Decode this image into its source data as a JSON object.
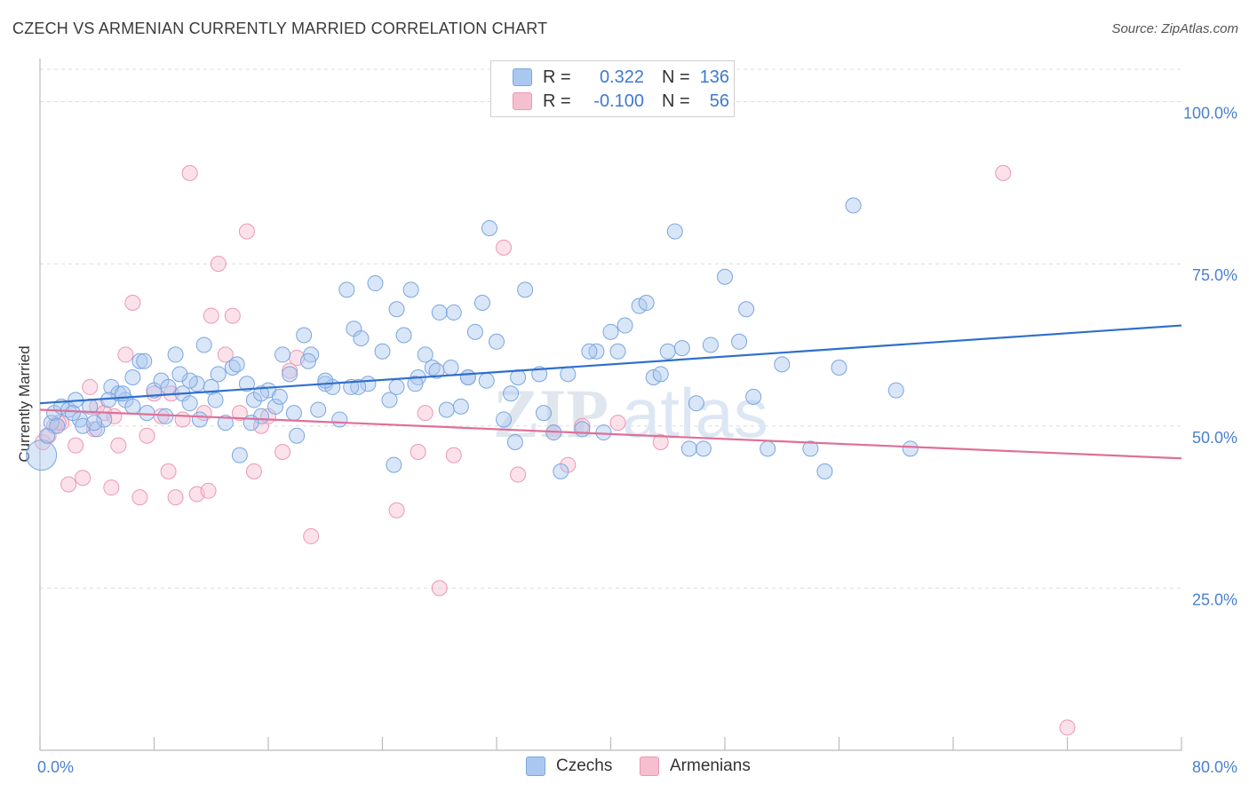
{
  "header": {
    "title": "CZECH VS ARMENIAN CURRENTLY MARRIED CORRELATION CHART",
    "source": "Source: ZipAtlas.com"
  },
  "legend": {
    "czechs": {
      "r_label": "R =",
      "r_value": "0.322",
      "n_label": "N =",
      "n_value": "136"
    },
    "armenians": {
      "r_label": "R =",
      "r_value": "-0.100",
      "n_label": "N =",
      "n_value": "56"
    }
  },
  "watermark": {
    "zip": "ZIP",
    "atlas": "atlas"
  },
  "colors": {
    "czech_fill": "#aac8ef",
    "czech_stroke": "#7aa6e0",
    "czech_line": "#2f6fcc",
    "armenian_fill": "#f6bfd0",
    "armenian_stroke": "#ec98b3",
    "armenian_line": "#e06f98",
    "axis_label": "#4a7fd0"
  },
  "chart_data": {
    "type": "scatter",
    "title": "CZECH VS ARMENIAN CURRENTLY MARRIED CORRELATION CHART",
    "xlabel": "",
    "ylabel": "Currently Married",
    "xlim": [
      0,
      80
    ],
    "ylim": [
      0,
      105
    ],
    "x_tick_labels": [
      "0.0%",
      "80.0%"
    ],
    "y_ticks": [
      25,
      50,
      75,
      100
    ],
    "y_tick_labels": [
      "25.0%",
      "50.0%",
      "75.0%",
      "100.0%"
    ],
    "grid": true,
    "legend_position": "top-center",
    "series": [
      {
        "name": "Czechs",
        "points": [
          [
            0.1,
            45.5
          ],
          [
            0.5,
            48.5
          ],
          [
            0.8,
            50.5
          ],
          [
            1.0,
            52
          ],
          [
            1.5,
            53
          ],
          [
            2.0,
            52.5
          ],
          [
            2.5,
            54
          ],
          [
            2.8,
            51
          ],
          [
            3.0,
            50
          ],
          [
            3.5,
            53
          ],
          [
            4.0,
            49.5
          ],
          [
            4.5,
            51
          ],
          [
            5.0,
            56
          ],
          [
            5.5,
            55
          ],
          [
            6.0,
            54
          ],
          [
            6.5,
            57.5
          ],
          [
            7.0,
            60
          ],
          [
            7.5,
            52
          ],
          [
            8.0,
            55.5
          ],
          [
            8.5,
            57
          ],
          [
            9.0,
            56
          ],
          [
            9.5,
            61
          ],
          [
            10.0,
            55
          ],
          [
            10.5,
            53.5
          ],
          [
            11.0,
            56.5
          ],
          [
            11.5,
            62.5
          ],
          [
            12.0,
            56
          ],
          [
            12.5,
            58
          ],
          [
            13.0,
            50.5
          ],
          [
            13.5,
            59
          ],
          [
            14.0,
            45.5
          ],
          [
            14.5,
            56.5
          ],
          [
            15.0,
            54
          ],
          [
            15.5,
            51.5
          ],
          [
            16.0,
            55.5
          ],
          [
            16.5,
            53
          ],
          [
            17.0,
            61
          ],
          [
            17.5,
            58
          ],
          [
            18.0,
            48.5
          ],
          [
            18.5,
            64
          ],
          [
            19.0,
            61
          ],
          [
            19.5,
            52.5
          ],
          [
            20.0,
            56.5
          ],
          [
            20.5,
            56
          ],
          [
            21.0,
            51
          ],
          [
            21.5,
            71
          ],
          [
            22.0,
            65
          ],
          [
            22.5,
            63.5
          ],
          [
            23.0,
            56.5
          ],
          [
            23.5,
            72
          ],
          [
            24.0,
            61.5
          ],
          [
            24.5,
            54
          ],
          [
            25.0,
            68
          ],
          [
            25.5,
            64
          ],
          [
            26.0,
            71
          ],
          [
            26.5,
            57.5
          ],
          [
            27.0,
            61
          ],
          [
            27.5,
            59
          ],
          [
            28.0,
            67.5
          ],
          [
            28.5,
            52.5
          ],
          [
            29.0,
            67.5
          ],
          [
            29.5,
            53
          ],
          [
            30.0,
            57.5
          ],
          [
            30.5,
            64.5
          ],
          [
            31.0,
            69
          ],
          [
            31.5,
            80.5
          ],
          [
            32.0,
            63
          ],
          [
            32.5,
            51
          ],
          [
            33.0,
            55
          ],
          [
            33.5,
            57.5
          ],
          [
            34.0,
            71
          ],
          [
            35.0,
            58
          ],
          [
            36.0,
            49
          ],
          [
            37.0,
            58
          ],
          [
            38.0,
            49.5
          ],
          [
            39.0,
            61.5
          ],
          [
            40.0,
            64.5
          ],
          [
            40.5,
            61.5
          ],
          [
            41.0,
            65.5
          ],
          [
            42.0,
            68.5
          ],
          [
            42.5,
            69
          ],
          [
            43.0,
            57.5
          ],
          [
            44.0,
            61.5
          ],
          [
            44.5,
            80
          ],
          [
            45.0,
            62
          ],
          [
            46.0,
            53.5
          ],
          [
            47.0,
            62.5
          ],
          [
            48.0,
            73
          ],
          [
            49.0,
            63
          ],
          [
            49.5,
            68
          ],
          [
            50.0,
            54.5
          ],
          [
            51.0,
            46.5
          ],
          [
            52.0,
            59.5
          ],
          [
            54.0,
            46.5
          ],
          [
            55.0,
            43
          ],
          [
            56.0,
            59
          ],
          [
            57.0,
            84
          ],
          [
            60.0,
            55.5
          ],
          [
            61.0,
            46.5
          ],
          [
            36.5,
            43
          ],
          [
            39.5,
            49
          ],
          [
            30.0,
            57.5
          ],
          [
            25.0,
            56
          ],
          [
            20.0,
            57
          ],
          [
            15.5,
            55
          ],
          [
            10.5,
            57
          ],
          [
            6.5,
            53
          ],
          [
            2.3,
            52
          ],
          [
            3.8,
            50.5
          ],
          [
            8.8,
            51.5
          ],
          [
            12.3,
            54
          ],
          [
            17.8,
            52
          ],
          [
            22.3,
            56
          ],
          [
            27.8,
            58.5
          ],
          [
            33.3,
            47.5
          ],
          [
            45.5,
            46.5
          ],
          [
            46.5,
            46.5
          ],
          [
            13.8,
            59.5
          ],
          [
            18.8,
            60
          ],
          [
            24.8,
            44
          ],
          [
            7.3,
            60
          ],
          [
            4.8,
            54
          ],
          [
            9.8,
            58
          ],
          [
            1.2,
            50
          ],
          [
            5.8,
            55
          ],
          [
            16.8,
            54.5
          ],
          [
            21.8,
            56
          ],
          [
            26.3,
            56.5
          ],
          [
            31.3,
            57
          ],
          [
            35.3,
            52
          ],
          [
            11.2,
            51
          ],
          [
            14.8,
            50.5
          ],
          [
            28.8,
            59
          ],
          [
            38.5,
            61.5
          ],
          [
            43.5,
            58
          ]
        ]
      },
      {
        "name": "Armenians",
        "points": [
          [
            0.2,
            47.5
          ],
          [
            0.6,
            48.5
          ],
          [
            1.0,
            50
          ],
          [
            1.5,
            50.5
          ],
          [
            2.0,
            41
          ],
          [
            2.5,
            47
          ],
          [
            3.0,
            42
          ],
          [
            3.5,
            56
          ],
          [
            4.0,
            53
          ],
          [
            4.5,
            52
          ],
          [
            5.0,
            40.5
          ],
          [
            5.5,
            47
          ],
          [
            6.0,
            61
          ],
          [
            6.5,
            69
          ],
          [
            7.0,
            39
          ],
          [
            7.5,
            48.5
          ],
          [
            8.0,
            55
          ],
          [
            8.5,
            51.5
          ],
          [
            9.0,
            43
          ],
          [
            9.5,
            39
          ],
          [
            10.0,
            51
          ],
          [
            10.5,
            89
          ],
          [
            11.0,
            39.5
          ],
          [
            11.5,
            52
          ],
          [
            12.0,
            67
          ],
          [
            12.5,
            75
          ],
          [
            13.0,
            61
          ],
          [
            13.5,
            67
          ],
          [
            14.0,
            52
          ],
          [
            14.5,
            80
          ],
          [
            15.0,
            43
          ],
          [
            15.5,
            50
          ],
          [
            16.0,
            51.5
          ],
          [
            17.0,
            46
          ],
          [
            17.5,
            58.5
          ],
          [
            18.0,
            60.5
          ],
          [
            19.0,
            33
          ],
          [
            25.0,
            37
          ],
          [
            26.5,
            46
          ],
          [
            27.0,
            52
          ],
          [
            28.0,
            25
          ],
          [
            29.0,
            45.5
          ],
          [
            32.5,
            77.5
          ],
          [
            33.5,
            42.5
          ],
          [
            36.0,
            49
          ],
          [
            37.0,
            44
          ],
          [
            38.0,
            50
          ],
          [
            40.5,
            50.5
          ],
          [
            43.5,
            47.5
          ],
          [
            67.5,
            89
          ],
          [
            72.0,
            3.5
          ],
          [
            3.8,
            49.5
          ],
          [
            9.2,
            55
          ],
          [
            11.8,
            40
          ],
          [
            1.3,
            50.5
          ],
          [
            5.2,
            51.5
          ]
        ]
      }
    ],
    "trend_lines": [
      {
        "name": "Czechs",
        "x": [
          0,
          80
        ],
        "y": [
          53.5,
          65.5
        ]
      },
      {
        "name": "Armenians",
        "x": [
          0,
          80
        ],
        "y": [
          52.5,
          45
        ]
      }
    ]
  },
  "bottom_legend": {
    "czechs": "Czechs",
    "armenians": "Armenians"
  }
}
